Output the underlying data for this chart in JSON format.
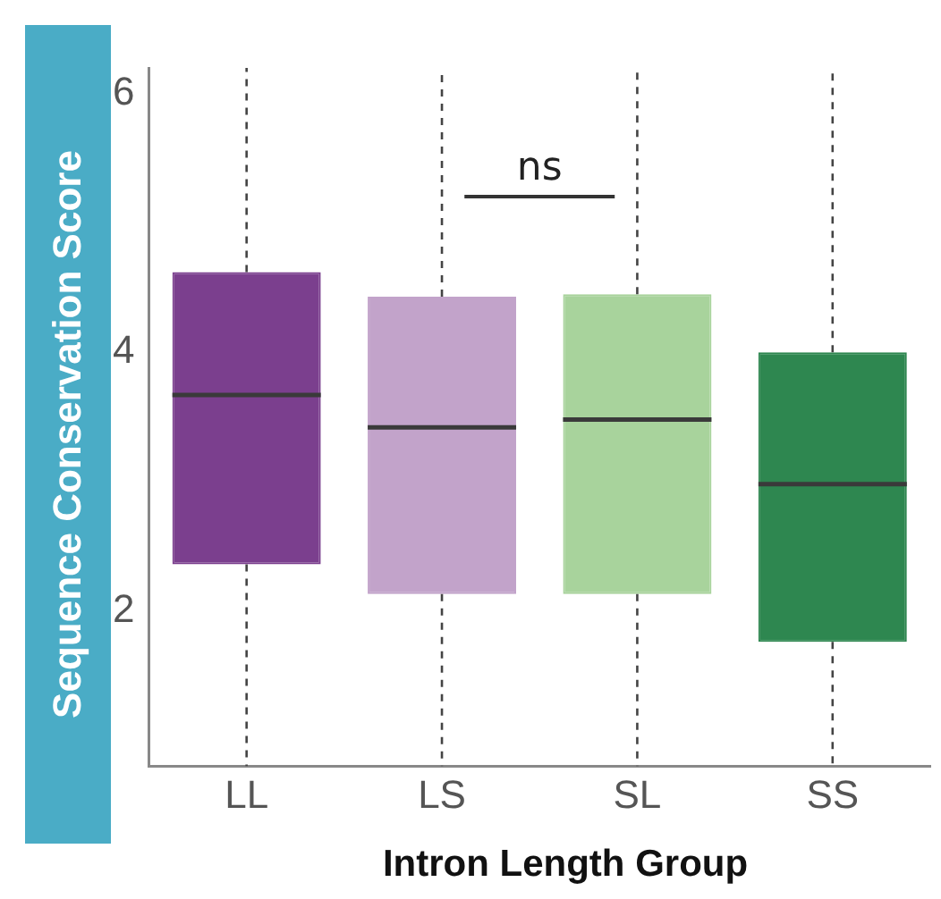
{
  "chart_data": {
    "type": "box",
    "xlabel": "Intron Length Group",
    "ylabel": "Sequence Conservation Score",
    "categories": [
      "LL",
      "LS",
      "SL",
      "SS"
    ],
    "colors": [
      "#7b3f8e",
      "#c2a3ca",
      "#a8d39c",
      "#2e8750"
    ],
    "boxes": [
      {
        "low": 0.8,
        "q1": 2.36,
        "median": 3.67,
        "q3": 4.62,
        "high": 6.2
      },
      {
        "low": 0.8,
        "q1": 2.13,
        "median": 3.42,
        "q3": 4.43,
        "high": 6.2
      },
      {
        "low": 0.8,
        "q1": 2.13,
        "median": 3.48,
        "q3": 4.45,
        "high": 6.2
      },
      {
        "low": 0.8,
        "q1": 1.76,
        "median": 2.98,
        "q3": 4.0,
        "high": 6.2
      }
    ],
    "ylim": [
      0.8,
      6.2
    ],
    "yticks": [
      2,
      4,
      6
    ],
    "grid": false,
    "legend": false,
    "annotations": [
      "ns"
    ]
  }
}
